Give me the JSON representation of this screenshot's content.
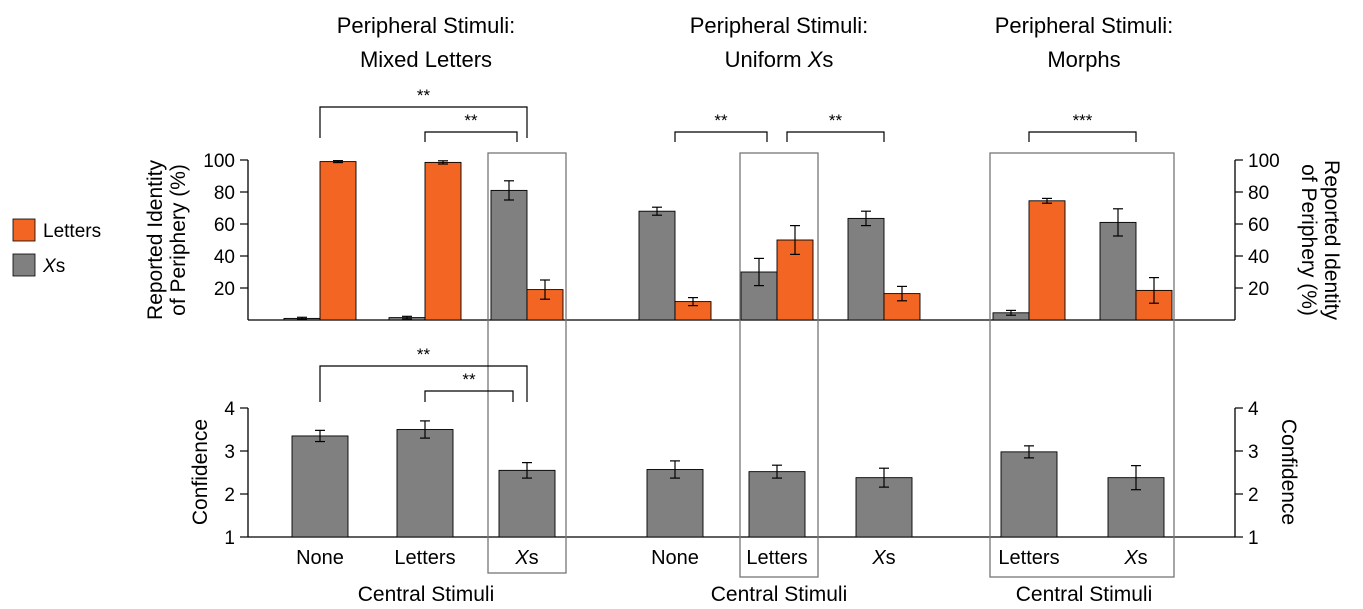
{
  "panels": [
    {
      "title_line1": "Peripheral Stimuli:",
      "title_line2": "Mixed Letters"
    },
    {
      "title_line1": "Peripheral Stimuli:",
      "title_line2_pre": "Uniform ",
      "title_line2_it": "X",
      "title_line2_post": "s"
    },
    {
      "title_line1": "Peripheral Stimuli:",
      "title_line2": "Morphs"
    }
  ],
  "legend": {
    "letters": {
      "label": "Letters"
    },
    "xs": {
      "label_it": "X",
      "label_post": "s"
    }
  },
  "xlabel": "Central Stimuli",
  "colors": {
    "letters": "#f26522",
    "xs": "#808080"
  },
  "chart_data": [
    {
      "type": "bar",
      "ylabel": [
        "Reported Identity",
        "of Periphery (%)"
      ],
      "ylim": [
        0,
        100
      ],
      "yticks": [
        20,
        40,
        60,
        80,
        100
      ],
      "groups": [
        {
          "panel": 0,
          "category": "None",
          "xs": 1,
          "xs_err": 0.7,
          "letters": 99,
          "letters_err": 0.6
        },
        {
          "panel": 0,
          "category": "Letters",
          "xs": 1.5,
          "xs_err": 0.8,
          "letters": 98.5,
          "letters_err": 1
        },
        {
          "panel": 0,
          "category": "Xs",
          "xs": 81,
          "xs_err": 6,
          "letters": 19,
          "letters_err": 6
        },
        {
          "panel": 1,
          "category": "None",
          "xs": 68,
          "xs_err": 2.5,
          "letters": 11.5,
          "letters_err": 2.5
        },
        {
          "panel": 1,
          "category": "Letters",
          "xs": 30,
          "xs_err": 8.5,
          "letters": 50,
          "letters_err": 9
        },
        {
          "panel": 1,
          "category": "Xs",
          "xs": 63.5,
          "xs_err": 4.5,
          "letters": 16.5,
          "letters_err": 4.5
        },
        {
          "panel": 2,
          "category": "Letters",
          "xs": 4.5,
          "xs_err": 1.5,
          "letters": 74.5,
          "letters_err": 1.5
        },
        {
          "panel": 2,
          "category": "Xs",
          "xs": 61,
          "xs_err": 8.5,
          "letters": 18.5,
          "letters_err": 8
        }
      ],
      "significance": [
        {
          "panel": 0,
          "from": "None",
          "to": "Xs",
          "label": "**"
        },
        {
          "panel": 0,
          "from": "Letters",
          "to": "Xs",
          "label": "**"
        },
        {
          "panel": 1,
          "from": "None",
          "to": "Letters",
          "label": "**"
        },
        {
          "panel": 1,
          "from": "Letters",
          "to": "Xs",
          "label": "**"
        },
        {
          "panel": 2,
          "from": "Letters",
          "to": "Xs",
          "label": "***"
        }
      ]
    },
    {
      "type": "bar",
      "ylabel": "Confidence",
      "ylim": [
        1,
        4
      ],
      "yticks": [
        1,
        2,
        3,
        4
      ],
      "groups": [
        {
          "panel": 0,
          "category": "None",
          "value": 3.35,
          "err": 0.13
        },
        {
          "panel": 0,
          "category": "Letters",
          "value": 3.5,
          "err": 0.2
        },
        {
          "panel": 0,
          "category": "Xs",
          "value": 2.55,
          "err": 0.18
        },
        {
          "panel": 1,
          "category": "None",
          "value": 2.57,
          "err": 0.2
        },
        {
          "panel": 1,
          "category": "Letters",
          "value": 2.52,
          "err": 0.15
        },
        {
          "panel": 1,
          "category": "Xs",
          "value": 2.38,
          "err": 0.22
        },
        {
          "panel": 2,
          "category": "Letters",
          "value": 2.98,
          "err": 0.14
        },
        {
          "panel": 2,
          "category": "Xs",
          "value": 2.38,
          "err": 0.28
        }
      ],
      "significance": [
        {
          "panel": 0,
          "from": "None",
          "to": "Xs",
          "label": "**"
        },
        {
          "panel": 0,
          "from": "Letters",
          "to": "Xs",
          "label": "**"
        }
      ]
    }
  ]
}
